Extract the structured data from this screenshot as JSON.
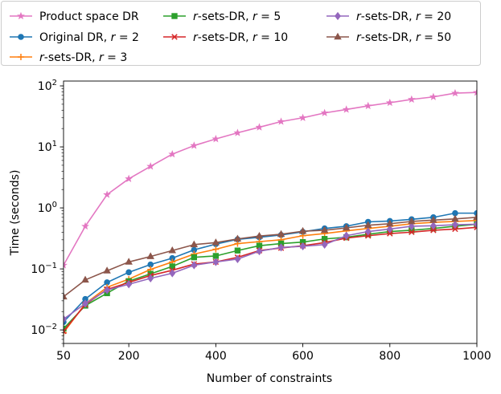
{
  "chart_data": {
    "type": "line",
    "title": "",
    "xlabel": "Number of constraints",
    "ylabel": "Time (seconds)",
    "xlim": [
      50,
      1000
    ],
    "ylim": [
      0.006,
      120
    ],
    "yscale": "log",
    "xticks": [
      50,
      200,
      400,
      600,
      800,
      1000
    ],
    "yticks": [
      {
        "value": 0.01,
        "base": "10",
        "exp": "−2"
      },
      {
        "value": 0.1,
        "base": "10",
        "exp": "−1"
      },
      {
        "value": 1,
        "base": "10",
        "exp": "0"
      },
      {
        "value": 10,
        "base": "10",
        "exp": "1"
      },
      {
        "value": 100,
        "base": "10",
        "exp": "2"
      }
    ],
    "grid": false,
    "legend_position": "top",
    "x": [
      50,
      100,
      150,
      200,
      250,
      300,
      350,
      400,
      450,
      500,
      550,
      600,
      650,
      700,
      750,
      800,
      850,
      900,
      950,
      1000
    ],
    "series": [
      {
        "name": "Product space DR",
        "pre": "",
        "italic": "",
        "post": "Product space DR",
        "color": "#e377c2",
        "marker": "star",
        "values": [
          0.115,
          0.5,
          1.65,
          3.0,
          4.8,
          7.6,
          10.5,
          13.5,
          17.0,
          21.0,
          26.0,
          30.0,
          36.0,
          41.0,
          47.0,
          53.0,
          60.0,
          66.0,
          76.0,
          78.0
        ]
      },
      {
        "name": "Original DR, r = 2",
        "pre": "Original DR, ",
        "italic": "r",
        "post": " = 2",
        "color": "#1f77b4",
        "marker": "circle",
        "values": [
          0.0135,
          0.032,
          0.06,
          0.088,
          0.118,
          0.15,
          0.205,
          0.255,
          0.305,
          0.33,
          0.36,
          0.405,
          0.46,
          0.5,
          0.59,
          0.61,
          0.65,
          0.7,
          0.82,
          0.82
        ]
      },
      {
        "name": "r-sets-DR, r = 3",
        "pre": "",
        "italic": "r",
        "post": "-sets-DR, r = 3",
        "color": "#ff7f0e",
        "marker": "plus",
        "values": [
          0.009,
          0.027,
          0.05,
          0.068,
          0.098,
          0.13,
          0.175,
          0.21,
          0.26,
          0.28,
          0.3,
          0.35,
          0.38,
          0.42,
          0.46,
          0.5,
          0.55,
          0.58,
          0.6,
          0.62
        ]
      },
      {
        "name": "r-sets-DR, r = 5",
        "pre": "",
        "italic": "r",
        "post": "-sets-DR, r = 5",
        "color": "#2ca02c",
        "marker": "square",
        "values": [
          0.0105,
          0.025,
          0.04,
          0.063,
          0.083,
          0.11,
          0.155,
          0.163,
          0.2,
          0.24,
          0.26,
          0.275,
          0.31,
          0.33,
          0.37,
          0.41,
          0.43,
          0.46,
          0.5,
          0.54
        ]
      },
      {
        "name": "r-sets-DR, r = 10",
        "pre": "",
        "italic": "r",
        "post": "-sets-DR, r = 10",
        "color": "#d62728",
        "marker": "x",
        "values": [
          0.0095,
          0.026,
          0.046,
          0.06,
          0.078,
          0.095,
          0.12,
          0.13,
          0.155,
          0.2,
          0.22,
          0.24,
          0.27,
          0.32,
          0.35,
          0.38,
          0.4,
          0.43,
          0.45,
          0.48
        ]
      },
      {
        "name": "r-sets-DR, r = 20",
        "pre": "",
        "italic": "r",
        "post": "-sets-DR, r = 20",
        "color": "#9467bd",
        "marker": "diamond",
        "values": [
          0.015,
          0.027,
          0.045,
          0.056,
          0.07,
          0.085,
          0.115,
          0.13,
          0.145,
          0.195,
          0.225,
          0.235,
          0.25,
          0.35,
          0.41,
          0.45,
          0.5,
          0.51,
          0.53,
          0.54
        ]
      },
      {
        "name": "r-sets-DR, r = 50",
        "pre": "",
        "italic": "r",
        "post": "-sets-DR, r = 50",
        "color": "#8c564b",
        "marker": "triangle",
        "values": [
          0.035,
          0.066,
          0.093,
          0.13,
          0.16,
          0.2,
          0.25,
          0.27,
          0.31,
          0.345,
          0.37,
          0.415,
          0.43,
          0.47,
          0.52,
          0.55,
          0.6,
          0.63,
          0.66,
          0.7
        ]
      }
    ]
  }
}
